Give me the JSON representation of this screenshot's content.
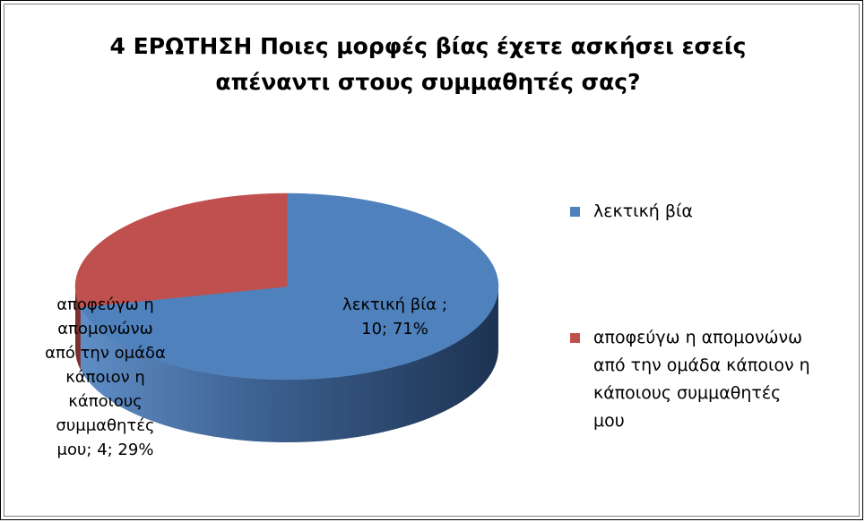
{
  "chart_data": {
    "type": "pie",
    "title": "4 ΕΡΩΤΗΣΗ Ποιες μορφές βίας έχετε ασκήσει εσείς απέναντι στους συμμαθητές σας?",
    "title_lines": [
      "4 ΕΡΩΤΗΣΗ Ποιες μορφές βίας έχετε ασκήσει εσείς",
      "απέναντι στους συμμαθητές σας?"
    ],
    "style": "3d",
    "legend_position": "right",
    "categories": [
      "λεκτική βία",
      "αποφεύγω η απομονώνω από την ομάδα κάποιον η κάποιους συμμαθητές μου"
    ],
    "values": [
      10,
      4
    ],
    "percents": [
      "71%",
      "29%"
    ],
    "colors": [
      "#4f81bd",
      "#c0504d"
    ],
    "data_labels": [
      [
        "λεκτική βία ;",
        "10; 71%"
      ],
      [
        "αποφεύγω η",
        "απομονώνω",
        "από την ομάδα",
        "κάποιον η",
        "κάποιους",
        "συμμαθητές",
        "μου; 4; 29%"
      ]
    ],
    "legend": [
      {
        "label_lines": [
          "λεκτική βία"
        ]
      },
      {
        "label_lines": [
          "αποφεύγω η απομονώνω",
          "από την ομάδα κάποιον η",
          "κάποιους συμμαθητές",
          "μου"
        ]
      }
    ]
  }
}
